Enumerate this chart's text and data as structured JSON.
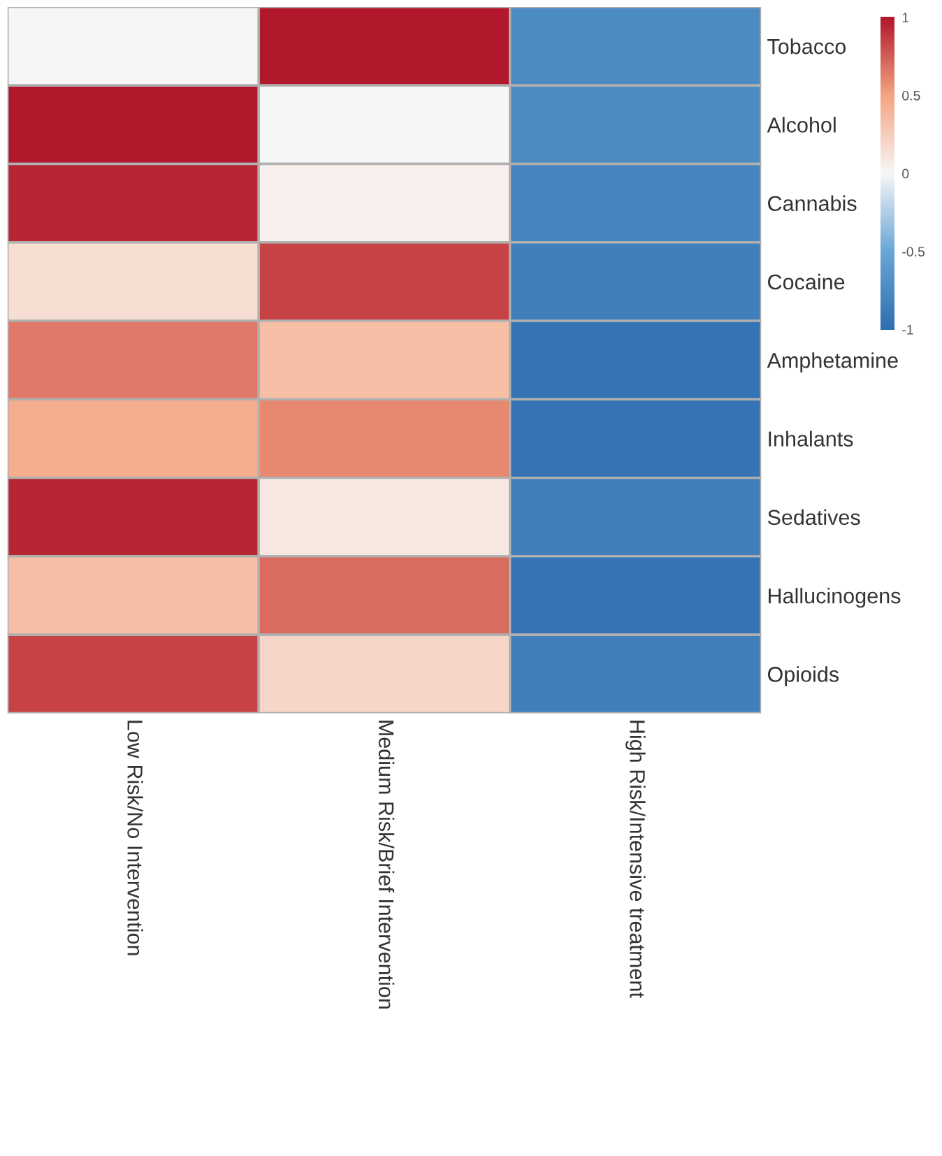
{
  "chart_data": {
    "type": "heatmap",
    "categories": [
      "Low Risk/No Intervention",
      "Medium Risk/Brief Intervention",
      "High Risk/Intensive treatment"
    ],
    "y_categories": [
      "Tobacco",
      "Alcohol",
      "Cannabis",
      "Cocaine",
      "Amphetamine",
      "Inhalants",
      "Sedatives",
      "Hallucinogens",
      "Opioids"
    ],
    "cells": [
      [
        0.0,
        1.0,
        -0.75
      ],
      [
        1.0,
        0.0,
        -0.75
      ],
      [
        0.95,
        0.05,
        -0.8
      ],
      [
        0.15,
        0.85,
        -0.85
      ],
      [
        0.65,
        0.35,
        -0.95
      ],
      [
        0.45,
        0.6,
        -0.95
      ],
      [
        0.95,
        0.1,
        -0.85
      ],
      [
        0.35,
        0.7,
        -0.95
      ],
      [
        0.85,
        0.2,
        -0.85
      ]
    ],
    "clim": [
      -1,
      1
    ],
    "cticks": [
      -1,
      -0.5,
      0,
      0.5,
      1
    ]
  }
}
